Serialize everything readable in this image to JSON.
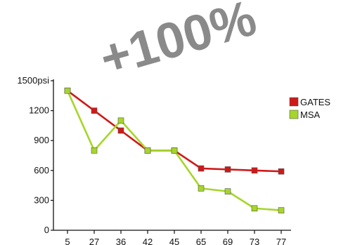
{
  "annotation": "+100%",
  "chart_data": {
    "type": "line",
    "categories": [
      "5",
      "27",
      "36",
      "42",
      "45",
      "65",
      "69",
      "73",
      "77"
    ],
    "y_tick_labels": [
      "0",
      "300",
      "600",
      "900",
      "1200",
      "1500psi"
    ],
    "ylim": [
      0,
      1500
    ],
    "grid": false,
    "legend_position": "right",
    "series": [
      {
        "name": "GATES",
        "color": "#d01818",
        "values": [
          1400,
          1200,
          1000,
          800,
          800,
          620,
          610,
          600,
          590
        ]
      },
      {
        "name": "MSA",
        "color": "#a6d62a",
        "values": [
          1400,
          800,
          1100,
          800,
          800,
          420,
          390,
          220,
          200
        ]
      }
    ]
  }
}
